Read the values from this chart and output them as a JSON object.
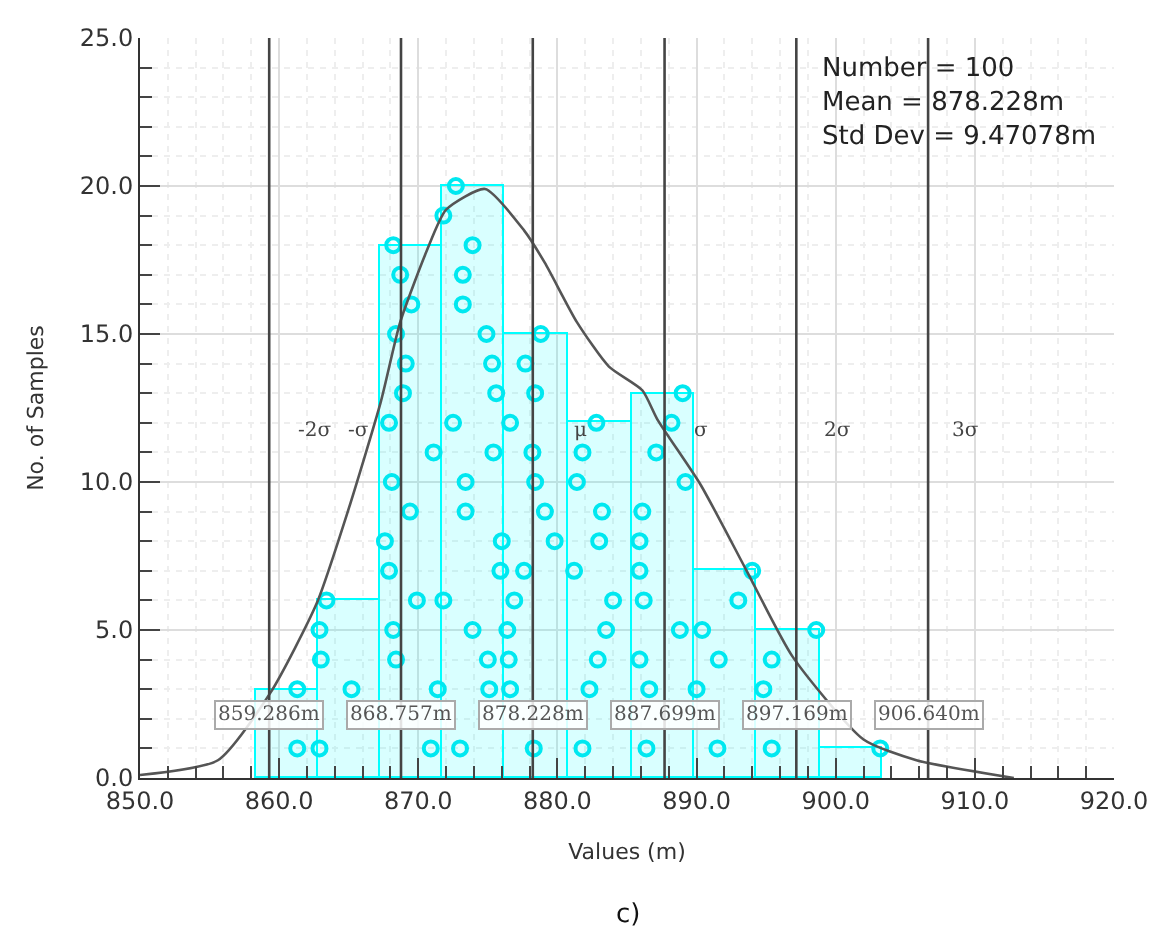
{
  "chart_data": {
    "type": "histogram",
    "xlabel": "Values (m)",
    "ylabel": "No. of Samples",
    "bins": [
      858.3,
      862.8,
      867.2,
      871.7,
      876.2,
      880.8,
      885.3,
      889.8,
      894.3,
      898.8,
      903.3
    ],
    "values": [
      3,
      6,
      18,
      20,
      15,
      12,
      13,
      7,
      5,
      1
    ],
    "color": "#00ffff",
    "series": [
      {
        "type": "scatter",
        "marker": "circle",
        "color": "#00e8f0",
        "x": [
          861.3,
          null,
          861.3,
          862.9,
          null,
          865.2,
          863.0,
          862.9,
          863.4,
          870.9,
          null,
          871.4,
          868.4,
          868.2,
          869.9,
          867.9,
          867.6,
          869.4,
          868.1,
          871.1,
          867.9,
          868.9,
          869.1,
          868.4,
          869.5,
          868.7,
          868.2,
          873.0,
          null,
          875.1,
          875.0,
          873.9,
          871.8,
          875.9,
          876.0,
          873.4,
          873.4,
          875.4,
          872.5,
          875.6,
          875.3,
          874.9,
          873.2,
          873.2,
          873.9,
          871.8,
          872.7,
          878.3,
          null,
          876.6,
          876.5,
          876.4,
          876.9,
          877.6,
          879.8,
          879.1,
          878.4,
          878.2,
          876.6,
          878.4,
          877.7,
          878.8,
          881.8,
          null,
          882.3,
          882.9,
          883.5,
          884.0,
          881.2,
          883.0,
          883.2,
          881.4,
          881.8,
          882.8,
          886.4,
          null,
          886.6,
          885.9,
          888.8,
          886.2,
          885.9,
          885.9,
          886.1,
          889.2,
          887.1,
          888.2,
          889.0,
          891.5,
          null,
          890.0,
          891.6,
          890.4,
          893.0,
          894.0,
          895.4,
          null,
          894.8,
          895.4,
          898.6,
          903.2
        ],
        "values": [
          1,
          null,
          3,
          1,
          null,
          3,
          4,
          5,
          6,
          1,
          null,
          3,
          4,
          5,
          6,
          7,
          8,
          9,
          10,
          11,
          12,
          13,
          14,
          15,
          16,
          17,
          18,
          1,
          null,
          3,
          4,
          5,
          6,
          7,
          8,
          9,
          10,
          11,
          12,
          13,
          14,
          15,
          16,
          17,
          18,
          19,
          20,
          1,
          null,
          3,
          4,
          5,
          6,
          7,
          8,
          9,
          10,
          11,
          12,
          13,
          14,
          15,
          1,
          null,
          3,
          4,
          5,
          6,
          7,
          8,
          9,
          10,
          11,
          12,
          1,
          null,
          3,
          4,
          5,
          6,
          7,
          8,
          9,
          10,
          11,
          12,
          13,
          1,
          null,
          3,
          4,
          5,
          6,
          7,
          1,
          null,
          3,
          4,
          5,
          1
        ]
      },
      {
        "type": "line",
        "color": "#555555",
        "x": [
          850.0,
          855.6,
          859.4,
          862.7,
          865.0,
          867.3,
          868.7,
          870.6,
          872.0,
          874.8,
          877.6,
          879.1,
          881.4,
          883.7,
          886.1,
          887.2,
          890.3,
          893.6,
          896.9,
          902.0,
          905.8,
          912.8
        ],
        "values": [
          0.1,
          0.6,
          2.9,
          5.9,
          9.1,
          12.7,
          15.4,
          17.8,
          19.2,
          19.9,
          18.5,
          17.4,
          15.4,
          13.9,
          13.1,
          12.1,
          9.9,
          7.0,
          4.1,
          1.3,
          0.6,
          0.0
        ]
      }
    ],
    "ref_lines": [
      {
        "axis": "x",
        "value": 859.286,
        "label": "859.286m",
        "color": "#444444"
      },
      {
        "axis": "x",
        "value": 868.757,
        "label": "868.757m",
        "color": "#444444"
      },
      {
        "axis": "x",
        "value": 878.228,
        "label": "878.228m",
        "color": "#444444"
      },
      {
        "axis": "x",
        "value": 887.699,
        "label": "887.699m",
        "color": "#444444"
      },
      {
        "axis": "x",
        "value": 897.169,
        "label": "897.169m",
        "color": "#444444"
      },
      {
        "axis": "x",
        "value": 906.64,
        "label": "906.640m",
        "color": "#444444"
      }
    ],
    "annotations": [
      "Number = 100\nMean = 878.228m\nStd Dev = 9.47078m",
      "c)",
      "-2σ",
      "-σ",
      "μ",
      "σ",
      "2σ",
      "3σ"
    ],
    "xlim": [
      850,
      920
    ],
    "xticks": [
      {
        "value": 850,
        "label": "850.0"
      },
      {
        "value": 860,
        "label": "860.0"
      },
      {
        "value": 870,
        "label": "870.0"
      },
      {
        "value": 880,
        "label": "880.0"
      },
      {
        "value": 890,
        "label": "890.0"
      },
      {
        "value": 900,
        "label": "900.0"
      },
      {
        "value": 910,
        "label": "910.0"
      },
      {
        "value": 920,
        "label": "920.0"
      }
    ],
    "ylim": [
      0,
      25
    ],
    "yticks": [
      {
        "value": 0,
        "label": "0.0"
      },
      {
        "value": 5,
        "label": "5.0"
      },
      {
        "value": 10,
        "label": "10.0"
      },
      {
        "value": 15,
        "label": "15.0"
      },
      {
        "value": 20,
        "label": "20.0"
      },
      {
        "value": 25,
        "label": "25.0"
      }
    ],
    "grid": true
  }
}
